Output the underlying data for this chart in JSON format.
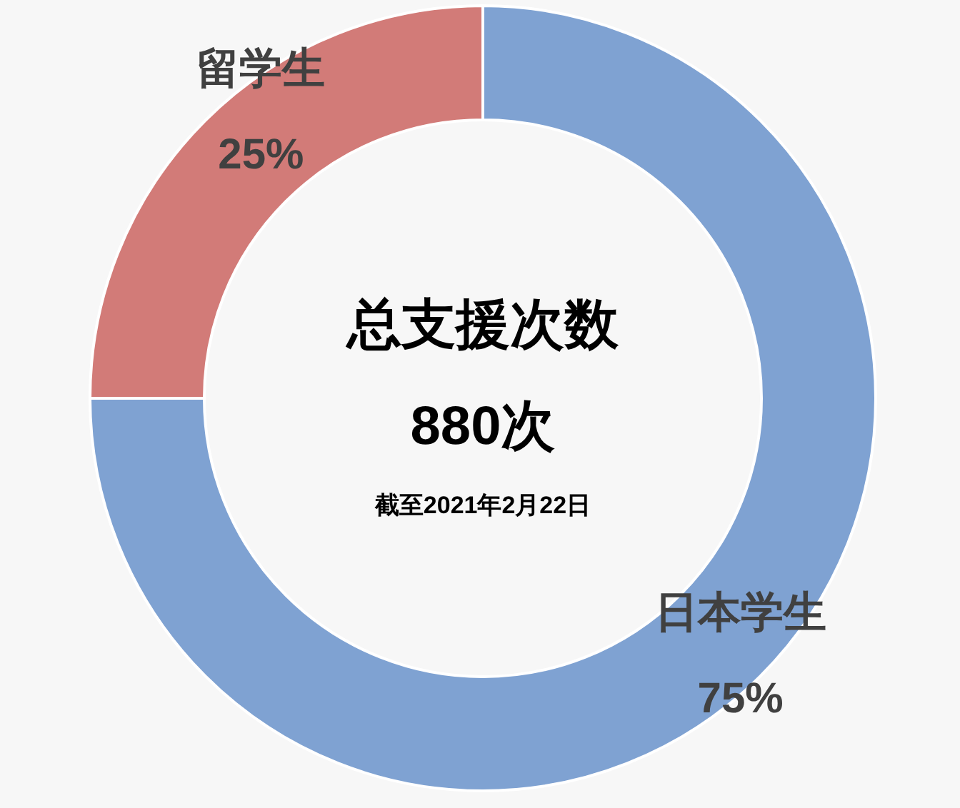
{
  "chart_data": {
    "type": "donut",
    "title": "总支援次数",
    "subtitle": "880次",
    "annotations": [
      "截至2021年2月22日"
    ],
    "categories": [
      "日本学生",
      "留学生"
    ],
    "values": [
      75,
      25
    ],
    "colors": [
      "#7fa2d2",
      "#d27b78"
    ],
    "value_labels": [
      "75%",
      "25%"
    ]
  }
}
